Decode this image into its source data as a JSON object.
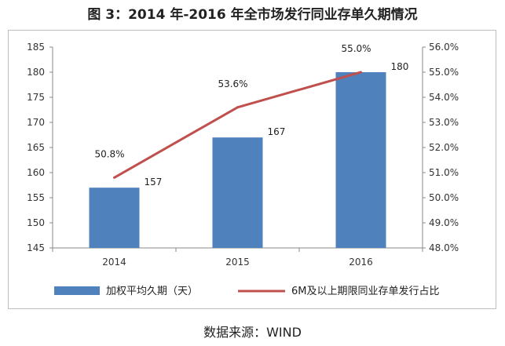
{
  "title": "图 3：2014 年-2016 年全市场发行同业存单久期情况",
  "source": "数据来源：WIND",
  "colors": {
    "bar": "#4F81BD",
    "line": "#C0504D",
    "axis": "#888888"
  },
  "chart_data": {
    "type": "bar",
    "categories": [
      "2014",
      "2015",
      "2016"
    ],
    "series": [
      {
        "name": "加权平均久期（天）",
        "type": "bar",
        "axis": "left",
        "values": [
          157,
          167,
          180
        ],
        "labels": [
          "157",
          "167",
          "180"
        ]
      },
      {
        "name": "6M及以上期限同业存单发行占比",
        "type": "line",
        "axis": "right",
        "values": [
          50.8,
          53.6,
          55.0
        ],
        "labels": [
          "50.8%",
          "53.6%",
          "55.0%"
        ]
      }
    ],
    "ylim_left": [
      145,
      185
    ],
    "yticks_left": [
      "145",
      "150",
      "155",
      "160",
      "165",
      "170",
      "175",
      "180",
      "185"
    ],
    "ylim_right": [
      48.0,
      56.0
    ],
    "yticks_right": [
      "48.0%",
      "49.0%",
      "50.0%",
      "51.0%",
      "52.0%",
      "53.0%",
      "54.0%",
      "55.0%",
      "56.0%"
    ],
    "grid": false,
    "legend": "bottom"
  }
}
